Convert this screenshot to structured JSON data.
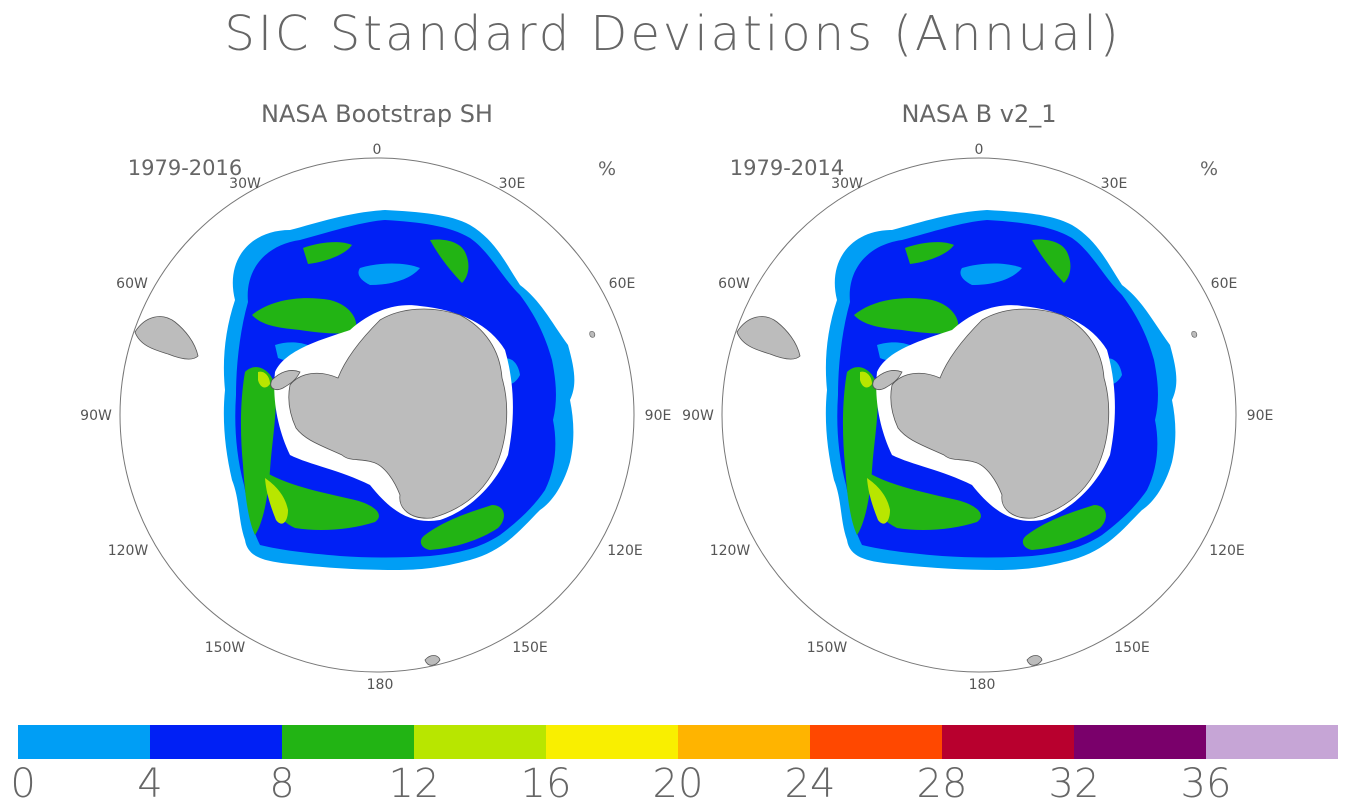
{
  "title": "SIC Standard Deviations (Annual)",
  "panels": [
    {
      "title": "NASA Bootstrap SH",
      "period": "1979-2016",
      "unit": "%"
    },
    {
      "title": "NASA B v2_1",
      "period": "1979-2014",
      "unit": "%"
    }
  ],
  "lon_labels": {
    "top": "0",
    "tl": "30W",
    "tr": "30E",
    "ul": "60W",
    "ur": "60E",
    "l": "90W",
    "r": "90E",
    "ll": "120W",
    "lr": "120E",
    "bl": "150W",
    "br": "150E",
    "bottom": "180"
  },
  "colorbar": {
    "colors": [
      "#009ef5",
      "#0020f5",
      "#22b414",
      "#b8e600",
      "#f9ef00",
      "#ffb400",
      "#ff4800",
      "#b8002e",
      "#7a006b",
      "#c6a5d6"
    ],
    "tick_labels": [
      "0",
      "4",
      "8",
      "12",
      "16",
      "20",
      "24",
      "28",
      "32",
      "36"
    ]
  },
  "colors": {
    "land": "#bcbcbc",
    "coast": "#555555",
    "circle": "#777777"
  }
}
